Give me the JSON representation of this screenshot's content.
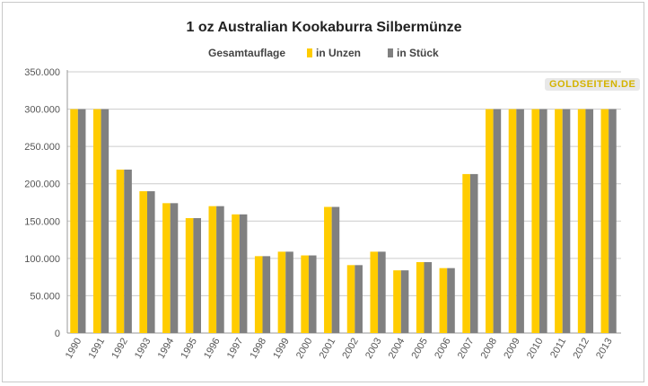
{
  "chart_data": {
    "type": "bar",
    "title": "1 oz Australian Kookaburra Silbermünze",
    "legend_title": "Gesamtauflage",
    "legend_position": "top",
    "categories": [
      "1990",
      "1991",
      "1992",
      "1993",
      "1994",
      "1995",
      "1996",
      "1997",
      "1998",
      "1999",
      "2000",
      "2001",
      "2002",
      "2003",
      "2004",
      "2005",
      "2006",
      "2007",
      "2008",
      "2009",
      "2010",
      "2011",
      "2012",
      "2013"
    ],
    "series": [
      {
        "name": "in Unzen",
        "color": "#ffcc00",
        "values": [
          300000,
          300000,
          219000,
          190000,
          174000,
          154000,
          170000,
          159000,
          103000,
          109000,
          104000,
          169000,
          91000,
          109000,
          84000,
          95000,
          87000,
          213000,
          300000,
          300000,
          300000,
          300000,
          300000,
          300000
        ]
      },
      {
        "name": "in Stück",
        "color": "#808080",
        "values": [
          300000,
          300000,
          219000,
          190000,
          174000,
          154000,
          170000,
          159000,
          103000,
          109000,
          104000,
          169000,
          91000,
          109000,
          84000,
          95000,
          87000,
          213000,
          300000,
          300000,
          300000,
          300000,
          300000,
          300000
        ]
      }
    ],
    "ylim": [
      0,
      350000
    ],
    "yticks": [
      "0",
      "50.000",
      "100.000",
      "150.000",
      "200.000",
      "250.000",
      "300.000",
      "350.000"
    ],
    "grid": true,
    "xlabel": "",
    "ylabel": ""
  },
  "watermark": "GOLDSEITEN.DE"
}
